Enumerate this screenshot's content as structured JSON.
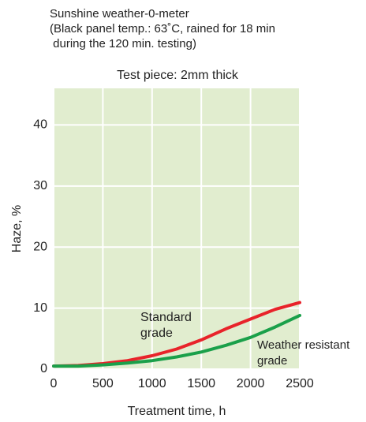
{
  "chart_data": {
    "type": "line",
    "title_lines": [
      "Sunshine weather-0-meter",
      "(Black panel temp.: 63˚C, rained for 18 min",
      " during the 120 min. testing)"
    ],
    "subtitle": "Test piece: 2mm thick",
    "x_label": "Treatment time, h",
    "y_label": "Haze, %",
    "x": [
      0,
      250,
      500,
      750,
      1000,
      1250,
      1500,
      1750,
      2000,
      2250,
      2500
    ],
    "series": [
      {
        "name": "Standard grade",
        "color": "#e8232a",
        "values": [
          0.5,
          0.6,
          0.9,
          1.4,
          2.2,
          3.3,
          4.8,
          6.6,
          8.2,
          9.8,
          10.9
        ]
      },
      {
        "name": "Weather resistant grade",
        "color": "#1aa04a",
        "values": [
          0.5,
          0.5,
          0.7,
          1.0,
          1.4,
          2.0,
          2.8,
          3.9,
          5.2,
          6.9,
          8.8
        ]
      }
    ],
    "xlim": [
      0,
      2500
    ],
    "xticks": [
      0,
      500,
      1000,
      1500,
      2000,
      2500
    ],
    "ylim": [
      0,
      46
    ],
    "yticks": [
      0,
      10,
      20,
      30,
      40
    ],
    "grid": true,
    "plot_background": "#e1edcf"
  }
}
